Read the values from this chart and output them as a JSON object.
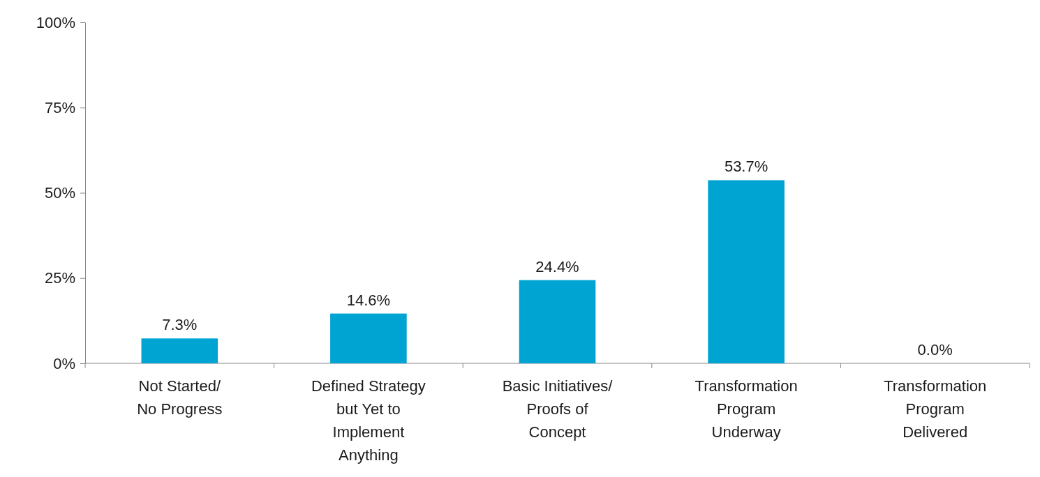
{
  "chart_data": {
    "type": "bar",
    "categories": [
      "Not Started/\nNo Progress",
      "Defined Strategy\nbut Yet to\nImplement\nAnything",
      "Basic Initiatives/\nProofs of\nConcept",
      "Transformation\nProgram\nUnderway",
      "Transformation\nProgram\nDelivered"
    ],
    "values": [
      7.3,
      14.6,
      24.4,
      53.7,
      0.0
    ],
    "value_labels": [
      "7.3%",
      "14.6%",
      "24.4%",
      "53.7%",
      "0.0%"
    ],
    "color": "#00a4d3",
    "ylim": [
      0,
      100
    ],
    "yticks": [
      {
        "value": 0,
        "label": "0%"
      },
      {
        "value": 25,
        "label": "25%"
      },
      {
        "value": 50,
        "label": "50%"
      },
      {
        "value": 75,
        "label": "75%"
      },
      {
        "value": 100,
        "label": "100%"
      }
    ],
    "grid": false
  }
}
